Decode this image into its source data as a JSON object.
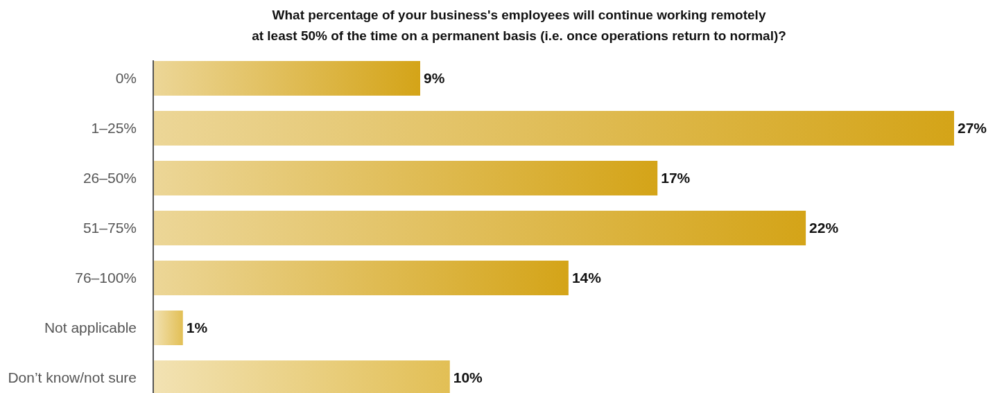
{
  "chart_data": {
    "type": "bar",
    "orientation": "horizontal",
    "title": "What percentage of your business's employees will continue working remotely at least 50% of the time on a permanent basis (i.e. once operations return to normal)?",
    "categories": [
      "0%",
      "1–25%",
      "26–50%",
      "51–75%",
      "76–100%",
      "Not applicable",
      "Don’t know/not sure"
    ],
    "values": [
      9,
      27,
      17,
      22,
      14,
      1,
      10
    ],
    "colors": [
      "#d4a418",
      "#d4a418",
      "#d4a418",
      "#d4a418",
      "#d4a418",
      "#e2bf55",
      "#e2bf55"
    ],
    "xlim": [
      0,
      27
    ],
    "data_labels": true,
    "value_labels": [
      "9%",
      "27%",
      "17%",
      "22%",
      "14%",
      "1%",
      "10%"
    ],
    "tick_labels": "y"
  }
}
